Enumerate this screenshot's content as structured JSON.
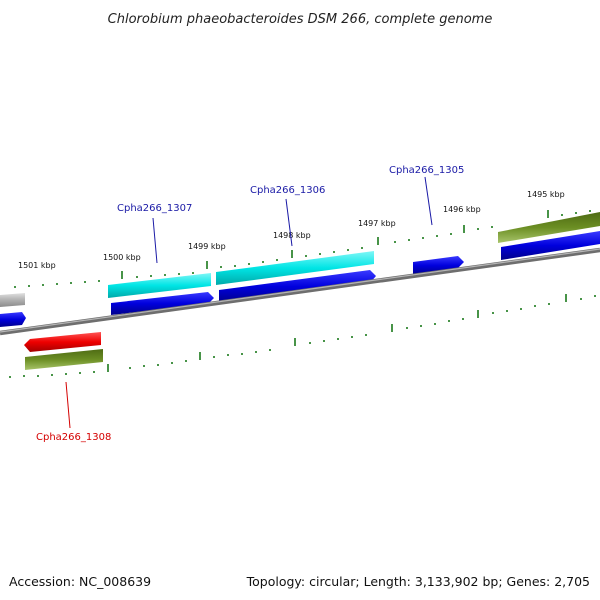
{
  "title": "Chlorobium phaeobacteroides DSM 266, complete genome",
  "footer": {
    "accession": "Accession: NC_008639",
    "summary": "Topology: circular; Length: 3,133,902 bp; Genes: 2,705"
  },
  "kbp_labels": {
    "k1501": "1501 kbp",
    "k1500": "1500 kbp",
    "k1499": "1499 kbp",
    "k1498": "1498 kbp",
    "k1497": "1497 kbp",
    "k1496": "1496 kbp",
    "k1495": "1495 kbp"
  },
  "gene_labels": {
    "g1305": "Cpha266_1305",
    "g1306": "Cpha266_1306",
    "g1307": "Cpha266_1307",
    "g1308": "Cpha266_1308"
  },
  "colors": {
    "cyan_gene": "#00e5e5",
    "blue_cds": "#0000dd",
    "red_gene": "#ee0000",
    "olive_gene": "#6b8e23",
    "gray_gene": "#b0b0b0",
    "tick_green": "#1a7a1a",
    "backbone": "#808080",
    "label_blue": "#1a1aa6",
    "label_red": "#d40000"
  }
}
